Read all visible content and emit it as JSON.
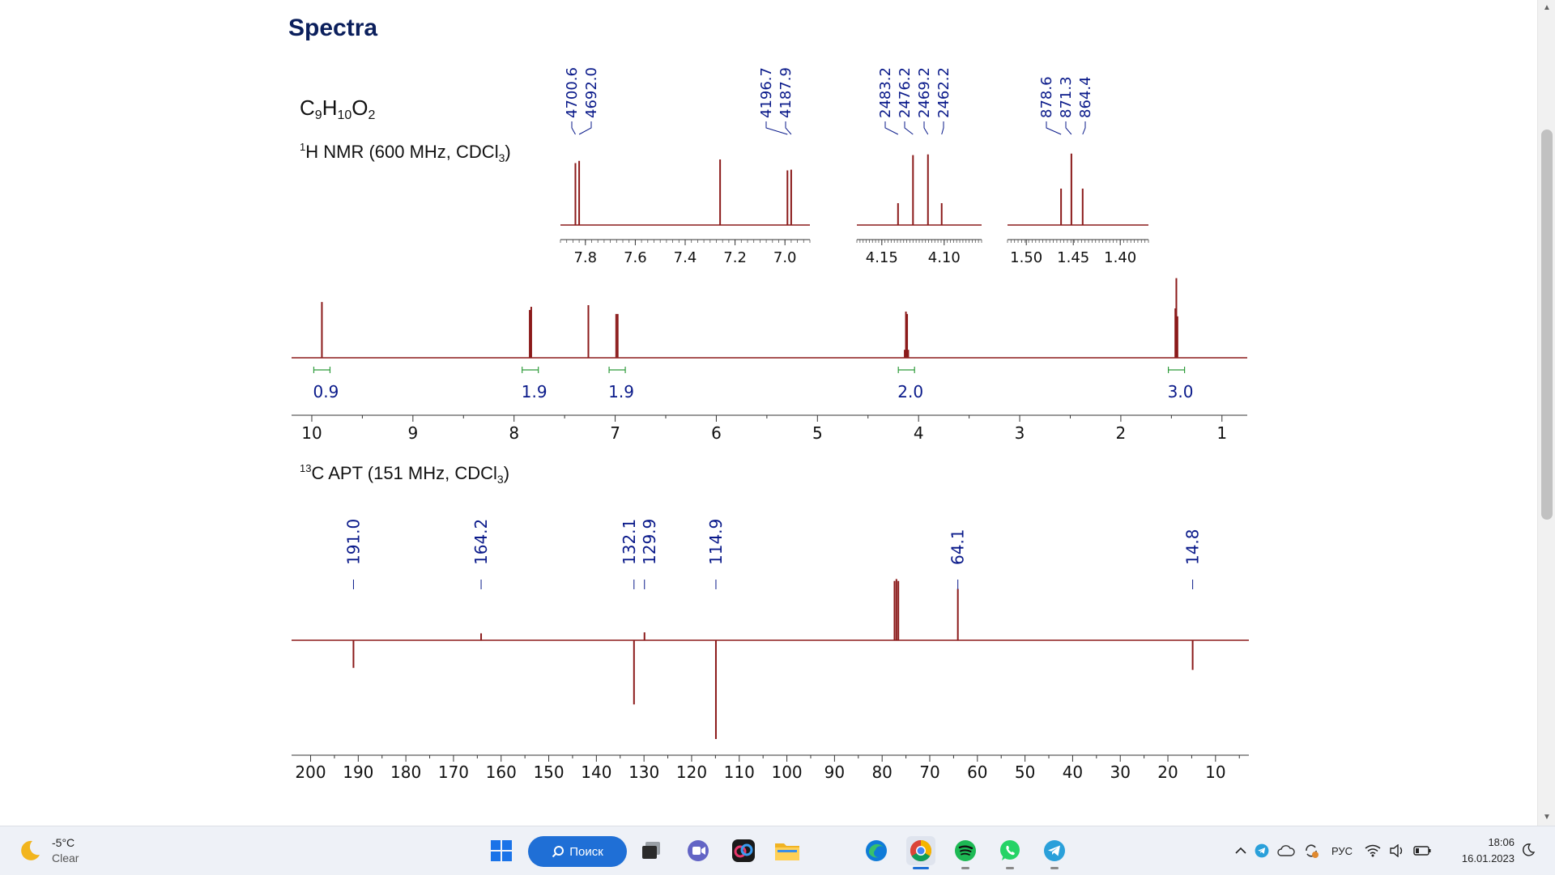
{
  "page": {
    "heading": "Spectra",
    "formula": {
      "parts": [
        {
          "t": "C"
        },
        {
          "sub": "9"
        },
        {
          "t": "H"
        },
        {
          "sub": "10"
        },
        {
          "t": "O"
        },
        {
          "sub": "2"
        }
      ]
    },
    "h_title": {
      "pre": "",
      "sup": "1",
      "mid": "H NMR (600 MHz, CDCl",
      "sub": "3",
      "post": ")"
    },
    "c_title": {
      "pre": "",
      "sup": "13",
      "mid": "C APT (151 MHz, CDCl",
      "sub": "3",
      "post": ")"
    }
  },
  "colors": {
    "spectrum": "#8b1a1a",
    "label": "#0a1a8a",
    "integral": "#2e9b3a",
    "heading": "#0b1f5c"
  },
  "chart_data": [
    {
      "type": "line",
      "kind": "1H NMR spectrum",
      "xlim": [
        10.2,
        0.75
      ],
      "x_ticks": [
        "10",
        "9",
        "8",
        "7",
        "6",
        "5",
        "4",
        "3",
        "2",
        "1"
      ],
      "peaks": [
        {
          "ppm": 9.9,
          "h": 0.7
        },
        {
          "ppm": 7.845,
          "h": 0.6
        },
        {
          "ppm": 7.83,
          "h": 0.64
        },
        {
          "ppm": 7.265,
          "h": 0.66
        },
        {
          "ppm": 6.99,
          "h": 0.55
        },
        {
          "ppm": 6.975,
          "h": 0.55
        },
        {
          "ppm": 4.137,
          "h": 0.1
        },
        {
          "ppm": 4.125,
          "h": 0.58
        },
        {
          "ppm": 4.113,
          "h": 0.55
        },
        {
          "ppm": 4.102,
          "h": 0.1
        },
        {
          "ppm": 1.461,
          "h": 0.62
        },
        {
          "ppm": 1.451,
          "h": 1.0
        },
        {
          "ppm": 1.44,
          "h": 0.52
        }
      ],
      "integrals": [
        {
          "ppm": 9.9,
          "value": "0.9"
        },
        {
          "ppm": 7.84,
          "value": "1.9"
        },
        {
          "ppm": 6.98,
          "value": "1.9"
        },
        {
          "ppm": 4.12,
          "value": "2.0"
        },
        {
          "ppm": 1.45,
          "value": "3.0"
        }
      ],
      "insets": [
        {
          "range": [
            7.9,
            6.9
          ],
          "ticks": [
            "7.8",
            "7.6",
            "7.4",
            "7.2",
            "7.0"
          ],
          "peaks": [
            {
              "ppm": 7.84,
              "h": 0.85
            },
            {
              "ppm": 7.825,
              "h": 0.88
            },
            {
              "ppm": 7.26,
              "h": 0.9
            },
            {
              "ppm": 6.99,
              "h": 0.75
            },
            {
              "ppm": 6.975,
              "h": 0.76
            }
          ],
          "labels": [
            "4700.6",
            "4692.0",
            "4196.7",
            "4187.9"
          ]
        },
        {
          "range": [
            4.17,
            4.07
          ],
          "ticks": [
            "4.15",
            "4.10"
          ],
          "peaks": [
            {
              "ppm": 4.137,
              "h": 0.3
            },
            {
              "ppm": 4.125,
              "h": 0.96
            },
            {
              "ppm": 4.113,
              "h": 0.97
            },
            {
              "ppm": 4.102,
              "h": 0.3
            }
          ],
          "labels": [
            "2483.2",
            "2476.2",
            "2469.2",
            "2462.2"
          ]
        },
        {
          "range": [
            1.52,
            1.37
          ],
          "ticks": [
            "1.50",
            "1.45",
            "1.40"
          ],
          "peaks": [
            {
              "ppm": 1.463,
              "h": 0.5
            },
            {
              "ppm": 1.452,
              "h": 0.98
            },
            {
              "ppm": 1.44,
              "h": 0.5
            }
          ],
          "labels": [
            "878.6",
            "871.3",
            "864.4"
          ]
        }
      ]
    },
    {
      "type": "line",
      "kind": "13C APT spectrum",
      "xlim": [
        204,
        3
      ],
      "x_ticks": [
        "200",
        "190",
        "180",
        "170",
        "160",
        "150",
        "140",
        "130",
        "120",
        "110",
        "100",
        "90",
        "80",
        "70",
        "60",
        "50",
        "40",
        "30",
        "20",
        "10"
      ],
      "peaks": [
        {
          "ppm": 191.0,
          "h": -0.28
        },
        {
          "ppm": 164.2,
          "h": 0.07
        },
        {
          "ppm": 132.1,
          "h": -0.65
        },
        {
          "ppm": 129.9,
          "h": 0.08
        },
        {
          "ppm": 114.9,
          "h": -1.0
        },
        {
          "ppm": 77.4,
          "h": 0.6
        },
        {
          "ppm": 77.0,
          "h": 0.62
        },
        {
          "ppm": 76.6,
          "h": 0.6
        },
        {
          "ppm": 64.1,
          "h": 0.52
        },
        {
          "ppm": 14.8,
          "h": -0.3
        }
      ],
      "labels": [
        {
          "ppm": 191.0,
          "text": "191.0"
        },
        {
          "ppm": 164.2,
          "text": "164.2"
        },
        {
          "ppm": 132.1,
          "text": "132.1"
        },
        {
          "ppm": 129.9,
          "text": "129.9"
        },
        {
          "ppm": 114.9,
          "text": "114.9"
        },
        {
          "ppm": 64.1,
          "text": "64.1"
        },
        {
          "ppm": 14.8,
          "text": "14.8"
        }
      ]
    }
  ],
  "taskbar": {
    "weather": {
      "temp": "-5°C",
      "cond": "Clear",
      "icon": "moon-icon"
    },
    "search_label": "Поиск",
    "apps": [
      {
        "name": "start-icon"
      },
      {
        "name": "search-button"
      },
      {
        "name": "task-view-icon"
      },
      {
        "name": "teams-chat-icon"
      },
      {
        "name": "creative-cloud-icon"
      },
      {
        "name": "file-explorer-icon"
      },
      {
        "name": "edge-icon"
      },
      {
        "name": "chrome-icon"
      },
      {
        "name": "spotify-icon"
      },
      {
        "name": "whatsapp-icon"
      },
      {
        "name": "telegram-icon"
      }
    ],
    "lang": "РУС",
    "time": "18:06",
    "date": "16.01.2023"
  }
}
